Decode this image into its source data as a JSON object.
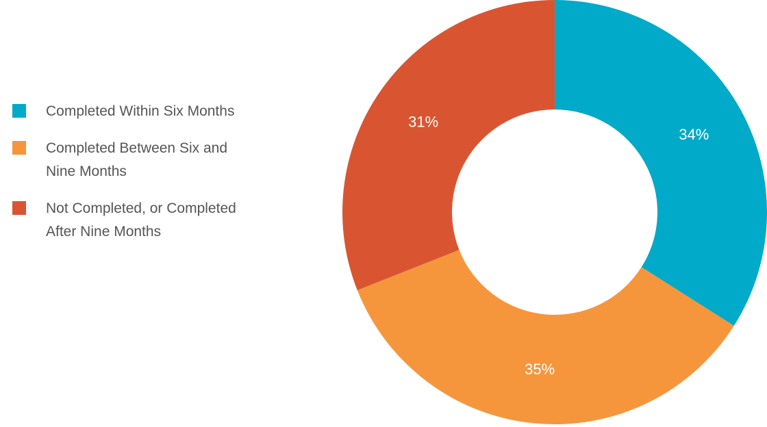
{
  "chart_data": {
    "type": "donut",
    "categories": [
      "Completed Within Six Months",
      "Completed Between Six and Nine Months",
      "Not Completed, or Completed After Nine Months"
    ],
    "values": [
      34,
      35,
      31
    ],
    "value_labels": [
      "34%",
      "35%",
      "31%"
    ],
    "colors": [
      "#00aac8",
      "#f5963c",
      "#d95532"
    ]
  }
}
